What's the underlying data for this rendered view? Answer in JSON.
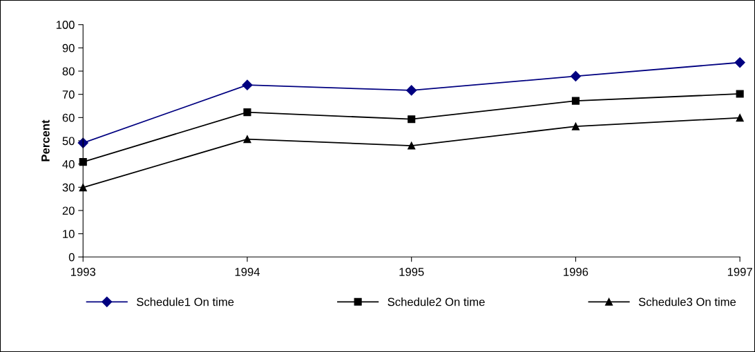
{
  "chart_data": {
    "type": "line",
    "ylabel": "Percent",
    "categories": [
      "1993",
      "1994",
      "1995",
      "1996",
      "1997"
    ],
    "ylim": [
      0,
      100
    ],
    "yticks": [
      0,
      10,
      20,
      30,
      40,
      50,
      60,
      70,
      80,
      90,
      100
    ],
    "grid": false,
    "legend": "bottom",
    "series": [
      {
        "name": "Schedule1 On time",
        "color": "#000080",
        "marker": "diamond",
        "values": [
          49.1,
          74.0,
          71.7,
          77.8,
          83.7
        ]
      },
      {
        "name": "Schedule2 On time",
        "color": "#000000",
        "marker": "square",
        "values": [
          40.9,
          62.3,
          59.3,
          67.2,
          70.2
        ]
      },
      {
        "name": "Schedule3 On time",
        "color": "#000000",
        "marker": "triangle",
        "values": [
          29.9,
          50.7,
          47.9,
          56.2,
          59.9
        ]
      }
    ]
  }
}
